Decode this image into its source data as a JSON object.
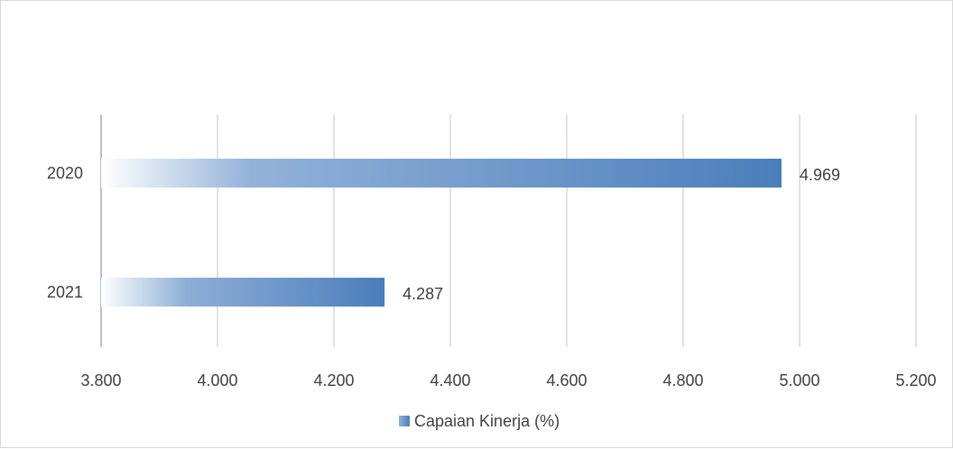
{
  "chart_data": {
    "type": "bar",
    "orientation": "horizontal",
    "categories": [
      "2020",
      "2021"
    ],
    "series": [
      {
        "name": "Capaian Kinerja (%)",
        "values": [
          4.969,
          4.287
        ],
        "labels": [
          "4.969",
          "4.287"
        ]
      }
    ],
    "xlim": [
      3.8,
      5.2
    ],
    "x_ticks": [
      3.8,
      4.0,
      4.2,
      4.4,
      4.6,
      4.8,
      5.0,
      5.2
    ],
    "x_tick_labels": [
      "3.800",
      "4.000",
      "4.200",
      "4.400",
      "4.600",
      "4.800",
      "5.000",
      "5.200"
    ],
    "title": "",
    "xlabel": "",
    "ylabel": "",
    "grid": "vertical",
    "legend_position": "bottom",
    "colors": {
      "bar": "#4a7ebb",
      "bar_fade": "#ffffff",
      "grid": "#d9d9d9",
      "text": "#404040"
    }
  }
}
